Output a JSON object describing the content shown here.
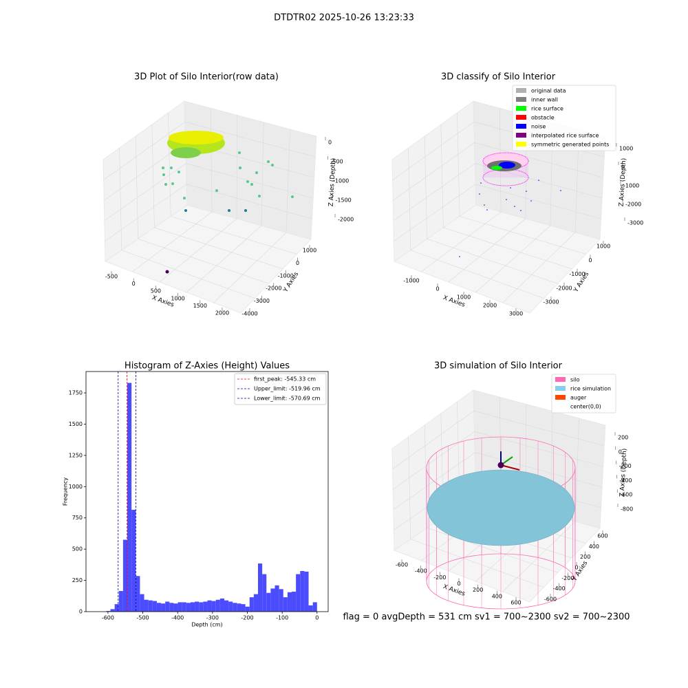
{
  "suptitle": "DTDTR02 2025-10-26 13:23:33",
  "footer": "flag = 0     avgDepth = 531 cm  sv1 = 700~2300  sv2 = 700~2300",
  "chart_data": [
    {
      "type": "scatter3d",
      "title": "3D Plot of Silo Interior(row data)",
      "xlabel": "X Axies",
      "ylabel": "Y Axies",
      "zlabel": "Z Axies (Depth)",
      "xticks": [
        -500,
        0,
        500,
        1000,
        1500,
        2000
      ],
      "yticks": [
        1000,
        0,
        -1000,
        -2000,
        -3000,
        -4000
      ],
      "zticks": [
        0,
        -500,
        -1000,
        -1500,
        -2000
      ]
    },
    {
      "type": "scatter3d",
      "title": "3D classify of Silo Interior",
      "xlabel": "X Axies",
      "ylabel": "Y Axies",
      "zlabel": "Z Axies (Depth)",
      "xticks": [
        -1000,
        0,
        1000,
        2000,
        3000
      ],
      "yticks": [
        1000,
        0,
        -1000,
        -2000,
        -3000
      ],
      "zticks": [
        1000,
        0,
        -1000,
        -2000,
        -3000
      ],
      "legend": [
        {
          "name": "original data",
          "color": "#b0b0b0"
        },
        {
          "name": "inner wall",
          "color": "#808080"
        },
        {
          "name": "rice surface",
          "color": "#00ff00"
        },
        {
          "name": "obstacle",
          "color": "#ff0000"
        },
        {
          "name": "noise",
          "color": "#0000ff"
        },
        {
          "name": "interpolated rice surface",
          "color": "#800080"
        },
        {
          "name": "symmetric generated points",
          "color": "#ffff00"
        }
      ]
    },
    {
      "type": "histogram",
      "title": "Histogram of Z-Axies (Height) Values",
      "xlabel": "Depth (cm)",
      "ylabel": "Frequency",
      "color": "#4c4cff",
      "bins": [
        -605,
        -592.9,
        -580.8,
        -568.7,
        -556.6,
        -544.5,
        -532.4,
        -520.3,
        -508.2,
        -496.1,
        -484,
        -471.9,
        -459.8,
        -447.7,
        -435.6,
        -423.5,
        -411.4,
        -399.3,
        -387.2,
        -375.1,
        -363,
        -350.9,
        -338.8,
        -326.7,
        -314.6,
        -302.5,
        -290.4,
        -278.3,
        -266.2,
        -254.1,
        -242,
        -229.9,
        -217.8,
        -205.7,
        -193.6,
        -181.5,
        -169.4,
        -157.3,
        -145.2,
        -133.1,
        -121,
        -108.9,
        -96.8,
        -84.7,
        -72.6,
        -60.5,
        -48.4,
        -36.3,
        -24.2,
        -12.1,
        0
      ],
      "values": [
        5,
        20,
        60,
        165,
        575,
        1830,
        815,
        285,
        140,
        95,
        90,
        85,
        70,
        65,
        80,
        70,
        65,
        75,
        75,
        70,
        75,
        80,
        75,
        80,
        90,
        85,
        95,
        105,
        90,
        80,
        70,
        65,
        60,
        40,
        115,
        140,
        385,
        300,
        150,
        185,
        210,
        180,
        115,
        155,
        160,
        300,
        325,
        320,
        50,
        75
      ],
      "xlim": [
        -663,
        32
      ],
      "ylim": [
        0,
        1921
      ],
      "xticks": [
        -600,
        -500,
        -400,
        -300,
        -200,
        -100,
        0
      ],
      "yticks": [
        0,
        250,
        500,
        750,
        1000,
        1250,
        1500,
        1750
      ],
      "lines": [
        {
          "name": "first_peak: -545.33 cm",
          "value": -545.33,
          "color": "#ff0000"
        },
        {
          "name": "Upper_limit: -519.96 cm",
          "value": -519.96,
          "color": "#0000aa"
        },
        {
          "name": "Lower_limit: -570.69 cm",
          "value": -570.69,
          "color": "#0000aa"
        }
      ]
    },
    {
      "type": "surface3d",
      "title": "3D simulation of Silo Interior",
      "xlabel": "X Axies",
      "ylabel": "Y Axies",
      "zlabel": "Z Axies (Depth)",
      "xticks": [
        -600,
        -400,
        -200,
        0,
        200,
        400,
        600
      ],
      "yticks": [
        600,
        400,
        200,
        0,
        -200,
        -400,
        -600
      ],
      "zticks": [
        200,
        0,
        -200,
        -400,
        -600,
        -800
      ],
      "legend": [
        {
          "name": "silo",
          "color": "#ff69b4"
        },
        {
          "name": "rice simulation",
          "color": "#87ceeb"
        },
        {
          "name": "auger",
          "color": "#ff4500"
        },
        {
          "name": "center(0,0)",
          "color": "#ffffff"
        }
      ]
    }
  ]
}
